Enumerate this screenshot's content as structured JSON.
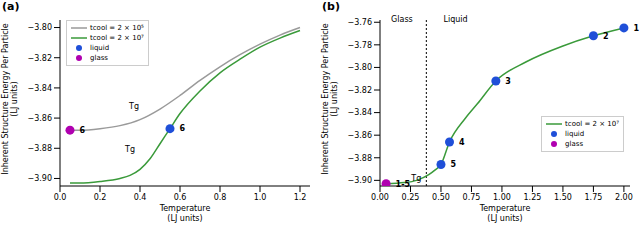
{
  "chart_data": [
    {
      "type": "line",
      "title": "(a)",
      "x_label": [
        "Temperature",
        "(LJ units)"
      ],
      "y_label": [
        "Inherent Structure Energy Per Particle",
        "(LJ units)"
      ],
      "xlim": [
        0,
        1.25
      ],
      "xticks": [
        {
          "value": 0,
          "label": "0.0"
        },
        {
          "value": 0.2,
          "label": "0.2"
        },
        {
          "value": 0.4,
          "label": "0.4"
        },
        {
          "value": 0.6,
          "label": "0.6"
        },
        {
          "value": 0.8,
          "label": "0.8"
        },
        {
          "value": 1,
          "label": "1.0"
        },
        {
          "value": 1.2,
          "label": "1.2"
        }
      ],
      "ylim": [
        -3.905,
        -3.795
      ],
      "yticks": [
        {
          "value": -3.9,
          "label": "−3.90"
        },
        {
          "value": -3.88,
          "label": "−3.88"
        },
        {
          "value": -3.86,
          "label": "−3.86"
        },
        {
          "value": -3.84,
          "label": "−3.84"
        },
        {
          "value": -3.82,
          "label": "−3.82"
        },
        {
          "value": -3.8,
          "label": "−3.80"
        }
      ],
      "grid": false,
      "legend": "upper left",
      "series": [
        {
          "name": "tcool = 2 × 10⁵",
          "type": "line",
          "color": "#9a9a9a",
          "x": [
            0.05,
            0.1,
            0.2,
            0.3,
            0.4,
            0.5,
            0.6,
            0.7,
            0.8,
            0.9,
            1.0,
            1.1,
            1.2
          ],
          "values": [
            -3.868,
            -3.868,
            -3.867,
            -3.865,
            -3.861,
            -3.854,
            -3.845,
            -3.835,
            -3.826,
            -3.818,
            -3.811,
            -3.805,
            -3.8
          ]
        },
        {
          "name": "tcool = 2 × 10⁷",
          "type": "line",
          "color": "#3a9a3a",
          "x": [
            0.05,
            0.1,
            0.2,
            0.3,
            0.35,
            0.4,
            0.45,
            0.5,
            0.55,
            0.6,
            0.7,
            0.8,
            0.9,
            1.0,
            1.1,
            1.2
          ],
          "values": [
            -3.903,
            -3.903,
            -3.902,
            -3.9,
            -3.898,
            -3.894,
            -3.887,
            -3.877,
            -3.867,
            -3.857,
            -3.842,
            -3.83,
            -3.821,
            -3.813,
            -3.807,
            -3.802
          ]
        },
        {
          "name": "liquid",
          "type": "scatter",
          "color": "#1f4fd8",
          "x": [
            0.55
          ],
          "values": [
            -3.867
          ],
          "point_labels": [
            "6"
          ]
        },
        {
          "name": "glass",
          "type": "scatter",
          "color": "#b000b0",
          "x": [
            0.05
          ],
          "values": [
            -3.868
          ],
          "point_labels": [
            "6"
          ]
        }
      ],
      "annotations": [
        {
          "text": "Tg",
          "x": 0.37,
          "y": -3.857
        },
        {
          "text": "Tg",
          "x": 0.35,
          "y": -3.886
        }
      ],
      "vlines": []
    },
    {
      "type": "line",
      "title": "(b)",
      "x_label": [
        "Temperature",
        "(LJ units)"
      ],
      "y_label": [
        "Inherent Structure Energy Per Particle",
        "(LJ units)"
      ],
      "xlim": [
        0,
        2.05
      ],
      "xticks": [
        {
          "value": 0,
          "label": "0.00"
        },
        {
          "value": 0.25,
          "label": "0.25"
        },
        {
          "value": 0.5,
          "label": "0.50"
        },
        {
          "value": 0.75,
          "label": "0.75"
        },
        {
          "value": 1,
          "label": "1.00"
        },
        {
          "value": 1.25,
          "label": "1.25"
        },
        {
          "value": 1.5,
          "label": "1.50"
        },
        {
          "value": 1.75,
          "label": "1.75"
        },
        {
          "value": 2,
          "label": "2.00"
        }
      ],
      "ylim": [
        -3.905,
        -3.758
      ],
      "yticks": [
        {
          "value": -3.9,
          "label": "−3.90"
        },
        {
          "value": -3.88,
          "label": "−3.88"
        },
        {
          "value": -3.86,
          "label": "−3.86"
        },
        {
          "value": -3.84,
          "label": "−3.84"
        },
        {
          "value": -3.82,
          "label": "−3.82"
        },
        {
          "value": -3.8,
          "label": "−3.80"
        },
        {
          "value": -3.78,
          "label": "−3.78"
        },
        {
          "value": -3.76,
          "label": "−3.76"
        }
      ],
      "grid": false,
      "legend": "lower right",
      "series": [
        {
          "name": "tcool = 2 × 10⁷",
          "type": "line",
          "color": "#3a9a3a",
          "x": [
            0.05,
            0.2,
            0.3,
            0.4,
            0.45,
            0.5,
            0.57,
            0.7,
            0.8,
            0.95,
            1.2,
            1.5,
            1.75,
            2.0
          ],
          "values": [
            -3.903,
            -3.902,
            -3.9,
            -3.895,
            -3.891,
            -3.886,
            -3.866,
            -3.845,
            -3.832,
            -3.812,
            -3.795,
            -3.781,
            -3.772,
            -3.765
          ]
        },
        {
          "name": "liquid",
          "type": "scatter",
          "color": "#1f4fd8",
          "x": [
            2.0,
            1.75,
            0.95,
            0.57,
            0.5
          ],
          "values": [
            -3.765,
            -3.772,
            -3.812,
            -3.866,
            -3.886
          ],
          "point_labels": [
            "1",
            "2",
            "3",
            "4",
            "5"
          ]
        },
        {
          "name": "glass",
          "type": "scatter",
          "color": "#b000b0",
          "x": [
            0.05
          ],
          "values": [
            -3.903
          ],
          "point_labels": [
            "1-5"
          ]
        }
      ],
      "annotations": [
        {
          "text": "Glass",
          "x": 0.18,
          "y": -3.764
        },
        {
          "text": "Liquid",
          "x": 0.62,
          "y": -3.764
        }
      ],
      "vlines": [
        {
          "x": 0.38,
          "label": "Tg"
        }
      ]
    }
  ]
}
